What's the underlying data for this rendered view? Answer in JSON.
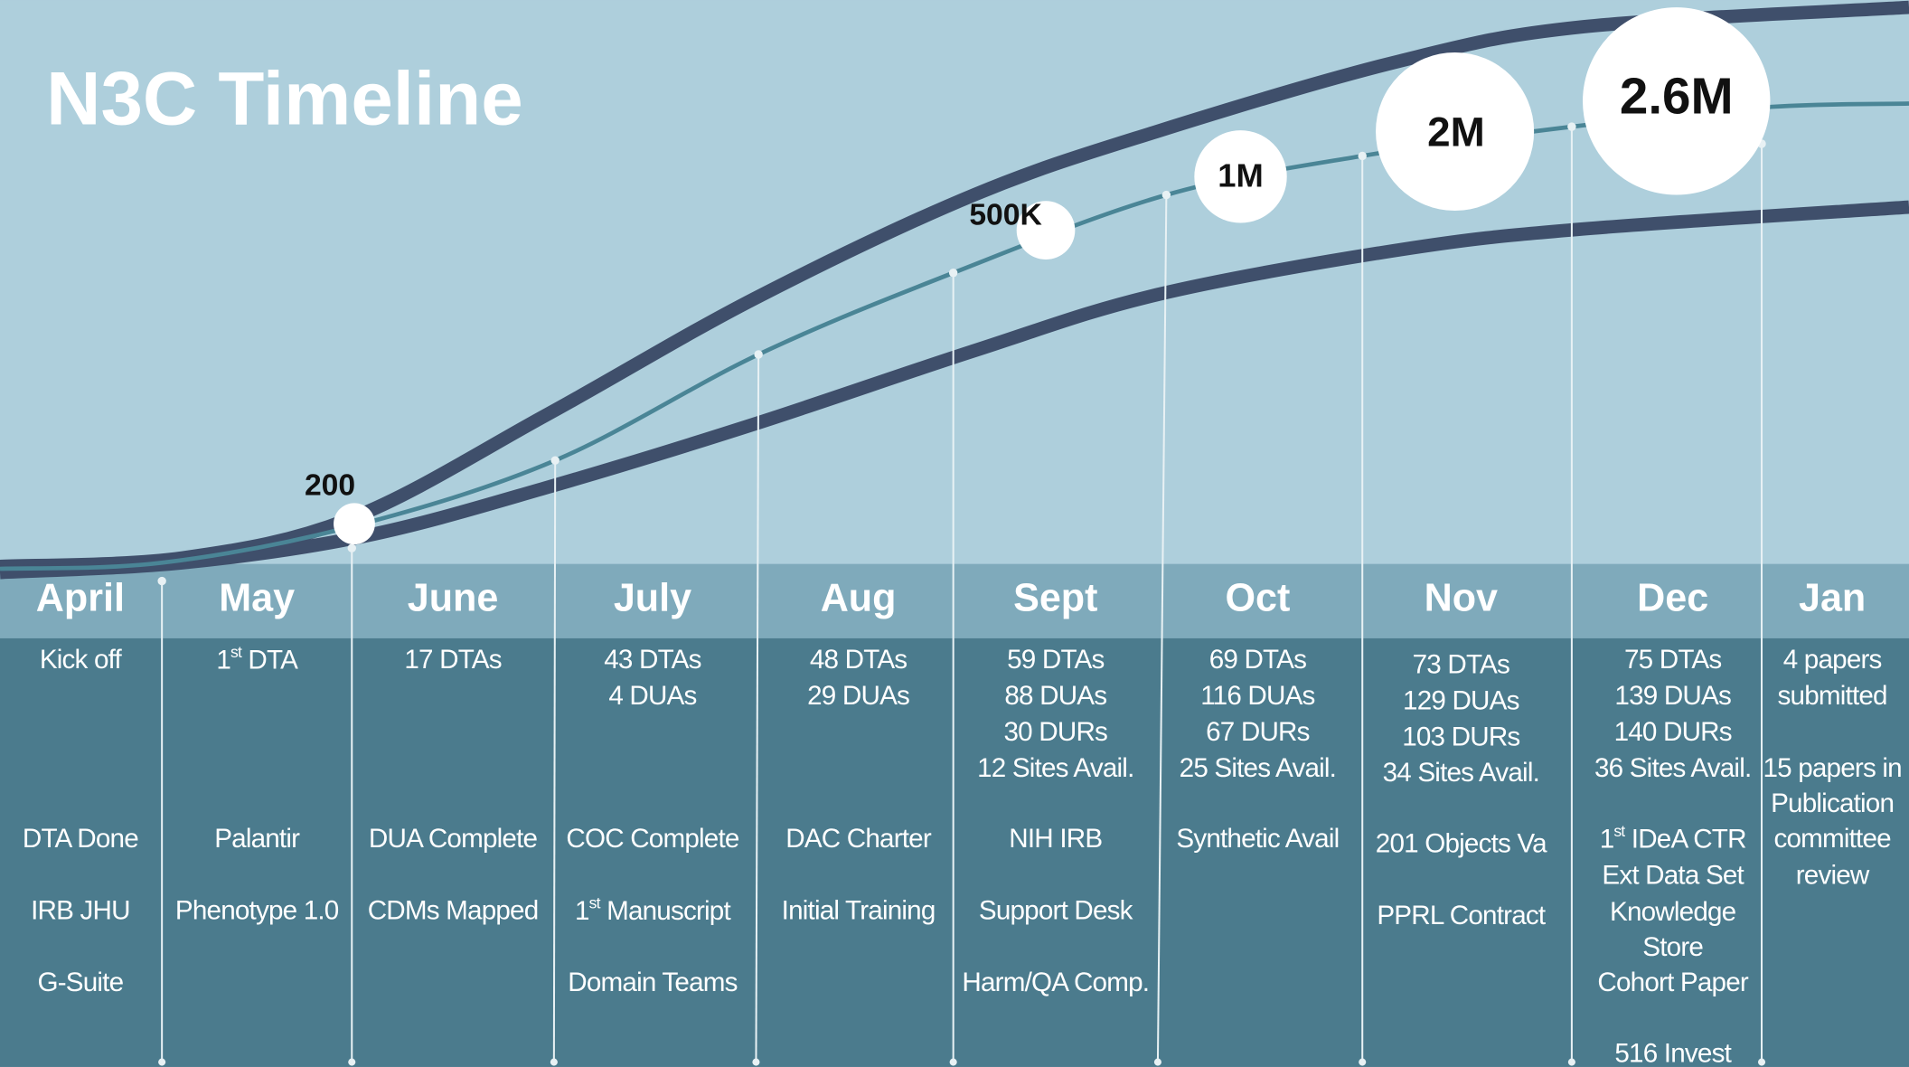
{
  "title": "N3C Timeline",
  "milestones": [
    "200",
    "500K",
    "1M",
    "2M",
    "2.6M"
  ],
  "months": [
    {
      "name": "April",
      "counts": [
        "Kick off"
      ],
      "events": [
        "DTA Done",
        "IRB JHU",
        "G-Suite"
      ]
    },
    {
      "name": "May",
      "counts": [
        "1st DTA"
      ],
      "events": [
        "Palantir",
        "Phenotype 1.0"
      ]
    },
    {
      "name": "June",
      "counts": [
        "17 DTAs"
      ],
      "events": [
        "DUA Complete",
        "CDMs Mapped"
      ]
    },
    {
      "name": "July",
      "counts": [
        "43 DTAs",
        "4 DUAs"
      ],
      "events": [
        "COC Complete",
        "1st Manuscript",
        "Domain Teams"
      ]
    },
    {
      "name": "Aug",
      "counts": [
        "48 DTAs",
        "29 DUAs"
      ],
      "events": [
        "DAC Charter",
        "Initial Training"
      ]
    },
    {
      "name": "Sept",
      "counts": [
        "59 DTAs",
        "88 DUAs",
        "30 DURs",
        "12 Sites Avail."
      ],
      "events": [
        "NIH IRB",
        "Support Desk",
        "Harm/QA Comp."
      ]
    },
    {
      "name": "Oct",
      "counts": [
        "69 DTAs",
        "116 DUAs",
        "67 DURs",
        "25 Sites Avail."
      ],
      "events": [
        "Synthetic Avail"
      ]
    },
    {
      "name": "Nov",
      "counts": [
        "73 DTAs",
        "129 DUAs",
        "103 DURs",
        "34 Sites Avail."
      ],
      "events": [
        "201 Objects Va",
        "PPRL Contract"
      ]
    },
    {
      "name": "Dec",
      "counts": [
        "75 DTAs",
        "139 DUAs",
        "140 DURs",
        "36 Sites Avail."
      ],
      "events": [
        "1st IDeA CTR",
        "Ext Data Set",
        "Knowledge",
        "Store",
        "Cohort Paper",
        "516 Invest"
      ]
    },
    {
      "name": "Jan",
      "counts": [
        "4 papers",
        "submitted"
      ],
      "events": [
        "15 papers in",
        "Publication",
        "committee",
        "review"
      ]
    }
  ]
}
